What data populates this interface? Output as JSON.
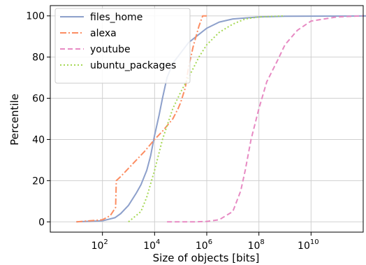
{
  "chart_data": {
    "type": "line",
    "title": "",
    "xlabel": "Size of objects [bits]",
    "ylabel": "Percentile",
    "x_scale": "log10",
    "xlim": [
      1.0,
      1000000000000.0
    ],
    "ylim": [
      -5,
      105
    ],
    "grid": true,
    "legend_position": "top-left",
    "x_ticks": [
      {
        "base": "10",
        "exp": "2",
        "value": 100
      },
      {
        "base": "10",
        "exp": "4",
        "value": 10000
      },
      {
        "base": "10",
        "exp": "6",
        "value": 1000000
      },
      {
        "base": "10",
        "exp": "8",
        "value": 100000000
      },
      {
        "base": "10",
        "exp": "10",
        "value": 10000000000
      }
    ],
    "y_ticks": [
      "0",
      "20",
      "40",
      "60",
      "80",
      "100"
    ],
    "series": [
      {
        "name": "files_home",
        "color": "#8da0cb",
        "dash": "solid",
        "points": [
          [
            10,
            0
          ],
          [
            100,
            0.5
          ],
          [
            300,
            2
          ],
          [
            500,
            4
          ],
          [
            1000,
            8
          ],
          [
            2000,
            14
          ],
          [
            3000,
            18
          ],
          [
            5000,
            25
          ],
          [
            7000,
            32
          ],
          [
            10000,
            42
          ],
          [
            15000,
            52
          ],
          [
            20000,
            60
          ],
          [
            30000,
            70
          ],
          [
            50000,
            77
          ],
          [
            100000,
            82
          ],
          [
            200000,
            87
          ],
          [
            500000,
            91
          ],
          [
            1000000,
            94
          ],
          [
            3000000,
            97
          ],
          [
            10000000,
            98.5
          ],
          [
            100000000,
            99.5
          ],
          [
            1000000000,
            99.8
          ],
          [
            3000000000000,
            100
          ]
        ]
      },
      {
        "name": "alexa",
        "color": "#fc8d62",
        "dash": "dashdot",
        "points": [
          [
            10,
            0
          ],
          [
            100,
            1
          ],
          [
            200,
            3
          ],
          [
            320,
            7
          ],
          [
            340,
            20
          ],
          [
            500,
            22
          ],
          [
            1000,
            26
          ],
          [
            2000,
            30
          ],
          [
            4000,
            34
          ],
          [
            10000,
            40
          ],
          [
            20000,
            44
          ],
          [
            50000,
            50
          ],
          [
            80000,
            55
          ],
          [
            100000,
            58
          ],
          [
            150000,
            65
          ],
          [
            200000,
            75
          ],
          [
            300000,
            85
          ],
          [
            500000,
            95
          ],
          [
            700000,
            100
          ],
          [
            1000000,
            100
          ]
        ]
      },
      {
        "name": "youtube",
        "color": "#e78ac3",
        "dash": "dashed",
        "points": [
          [
            30000,
            0
          ],
          [
            300000,
            0
          ],
          [
            1000000,
            0.2
          ],
          [
            3000000,
            1
          ],
          [
            10000000,
            5
          ],
          [
            20000000,
            15
          ],
          [
            30000000,
            25
          ],
          [
            50000000,
            40
          ],
          [
            100000000,
            55
          ],
          [
            200000000,
            68
          ],
          [
            500000000,
            78
          ],
          [
            1000000000,
            86
          ],
          [
            3000000000,
            93
          ],
          [
            10000000000,
            97.5
          ],
          [
            100000000000,
            99.5
          ],
          [
            1000000000000,
            100
          ]
        ]
      },
      {
        "name": "ubuntu_packages",
        "color": "#a6d854",
        "dash": "dotted",
        "points": [
          [
            1000,
            0
          ],
          [
            3000,
            5
          ],
          [
            5000,
            12
          ],
          [
            10000,
            25
          ],
          [
            20000,
            40
          ],
          [
            50000,
            55
          ],
          [
            100000,
            63
          ],
          [
            200000,
            70
          ],
          [
            500000,
            80
          ],
          [
            1000000,
            86
          ],
          [
            3000000,
            92
          ],
          [
            10000000,
            96
          ],
          [
            30000000,
            98.5
          ],
          [
            100000000,
            99.5
          ],
          [
            1000000000,
            100
          ]
        ]
      }
    ]
  }
}
